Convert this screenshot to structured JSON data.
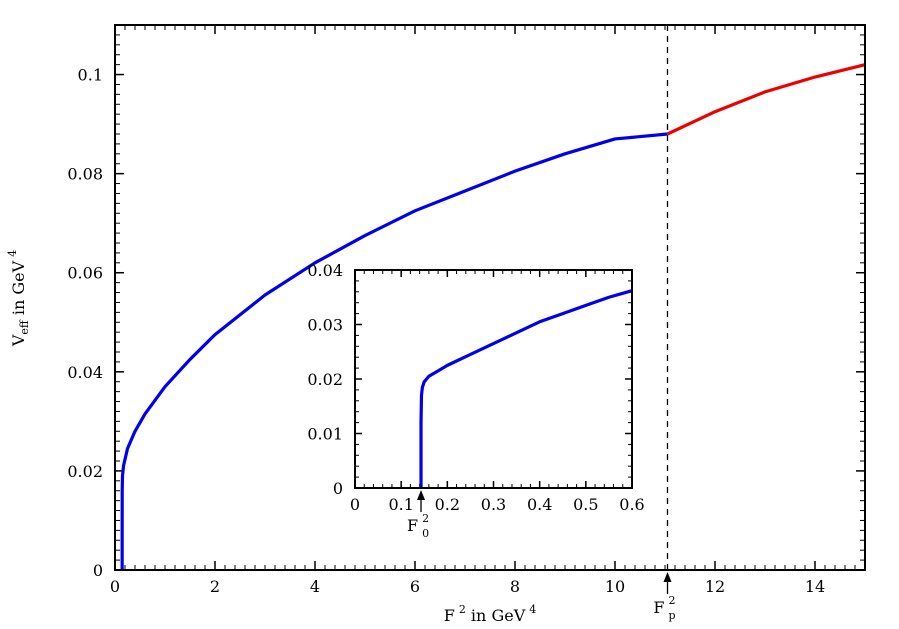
{
  "chart_data": [
    {
      "type": "line",
      "title": "",
      "xlabel": {
        "base": "F",
        "sup": "2",
        "rest": " in GeV",
        "rest_sup": "4"
      },
      "ylabel": {
        "base": "V",
        "sub": "eff",
        "rest": " in GeV",
        "rest_sup": "4"
      },
      "xlim": [
        0,
        15
      ],
      "ylim": [
        0,
        0.11
      ],
      "x_ticks": [
        0,
        2,
        4,
        6,
        8,
        10,
        12,
        14
      ],
      "x_tick_labels": [
        "0",
        "2",
        "4",
        "6",
        "8",
        "10",
        "12",
        "14"
      ],
      "y_ticks": [
        0,
        0.02,
        0.04,
        0.06,
        0.08,
        0.1
      ],
      "y_tick_labels": [
        "0",
        "0.02",
        "0.04",
        "0.06",
        "0.08",
        "0.1"
      ],
      "grid": false,
      "series": [
        {
          "color": "#0000ee",
          "points": [
            [
              0.143,
              0.0
            ],
            [
              0.143,
              0.008
            ],
            [
              0.144,
              0.016
            ],
            [
              0.15,
              0.019
            ],
            [
              0.17,
              0.021
            ],
            [
              0.25,
              0.0245
            ],
            [
              0.4,
              0.028
            ],
            [
              0.6,
              0.0315
            ],
            [
              1.0,
              0.037
            ],
            [
              1.5,
              0.0425
            ],
            [
              2.0,
              0.0475
            ],
            [
              3.0,
              0.0555
            ],
            [
              4.0,
              0.062
            ],
            [
              5.0,
              0.0675
            ],
            [
              6.0,
              0.0725
            ],
            [
              7.0,
              0.0765
            ],
            [
              8.0,
              0.0805
            ],
            [
              9.0,
              0.084
            ],
            [
              10.0,
              0.087
            ],
            [
              11.05,
              0.088
            ]
          ]
        },
        {
          "color": "#ee0000",
          "points": [
            [
              11.05,
              0.088
            ],
            [
              12.0,
              0.0925
            ],
            [
              13.0,
              0.0965
            ],
            [
              14.0,
              0.0995
            ],
            [
              15.0,
              0.102
            ]
          ]
        }
      ],
      "vline": {
        "x": 11.05,
        "style": "dashed"
      },
      "annotations": [
        {
          "x": 11.05,
          "label": {
            "base": "F",
            "sup": "2",
            "sub": "p"
          }
        }
      ]
    },
    {
      "type": "line",
      "title": "",
      "xlim": [
        0,
        0.6
      ],
      "ylim": [
        0,
        0.04
      ],
      "x_ticks": [
        0,
        0.1,
        0.2,
        0.3,
        0.4,
        0.5,
        0.6
      ],
      "x_tick_labels": [
        "0",
        "0.1",
        "0.2",
        "0.3",
        "0.4",
        "0.5",
        "0.6"
      ],
      "y_ticks": [
        0,
        0.01,
        0.02,
        0.03,
        0.04
      ],
      "y_tick_labels": [
        "0",
        "0.01",
        "0.02",
        "0.03",
        "0.04"
      ],
      "grid": false,
      "series": [
        {
          "color": "#0000ee",
          "points": [
            [
              0.143,
              0.0
            ],
            [
              0.143,
              0.012
            ],
            [
              0.144,
              0.017
            ],
            [
              0.146,
              0.0185
            ],
            [
              0.15,
              0.0195
            ],
            [
              0.16,
              0.0205
            ],
            [
              0.18,
              0.0215
            ],
            [
              0.2,
              0.0225
            ],
            [
              0.25,
              0.0245
            ],
            [
              0.3,
              0.0265
            ],
            [
              0.35,
              0.0285
            ],
            [
              0.4,
              0.0305
            ],
            [
              0.45,
              0.032
            ],
            [
              0.5,
              0.0335
            ],
            [
              0.55,
              0.035
            ],
            [
              0.6,
              0.0362
            ]
          ]
        }
      ],
      "annotations": [
        {
          "x": 0.143,
          "label": {
            "base": "F",
            "sup": "2",
            "sub": "0"
          }
        }
      ]
    }
  ]
}
